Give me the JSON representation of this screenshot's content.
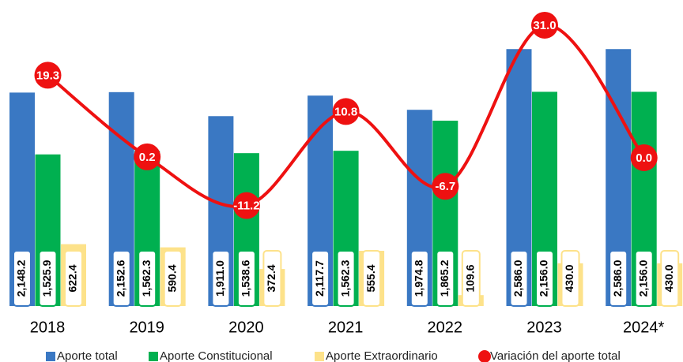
{
  "chart_data": {
    "type": "bar",
    "categories": [
      "2018",
      "2019",
      "2020",
      "2021",
      "2022",
      "2023",
      "2024*"
    ],
    "series": [
      {
        "name": "Aporte total",
        "color": "#3a78c3",
        "values": [
          2148.2,
          2152.6,
          1911.0,
          2117.7,
          1974.8,
          2586.0,
          2586.0
        ],
        "value_labels": [
          "2,148.2",
          "2,152.6",
          "1,911.0",
          "2,117.7",
          "1,974.8",
          "2,586.0",
          "2,586.0"
        ]
      },
      {
        "name": "Aporte Constitucional",
        "color": "#00b050",
        "values": [
          1525.9,
          1562.3,
          1538.6,
          1562.3,
          1865.2,
          2156.0,
          2156.0
        ],
        "value_labels": [
          "1,525.9",
          "1,562.3",
          "1,538.6",
          "1,562.3",
          "1,865.2",
          "2,156.0",
          "2,156.0"
        ]
      },
      {
        "name": "Aporte Extraordinario",
        "color": "#fde28a",
        "values": [
          622.4,
          590.4,
          372.4,
          555.4,
          109.6,
          430.0,
          430.0
        ],
        "value_labels": [
          "622.4",
          "590.4",
          "372.4",
          "555.4",
          "109.6",
          "430.0",
          "430.0"
        ]
      },
      {
        "name": "Variación del aporte total",
        "color": "#ee1111",
        "type": "line",
        "axis": "y2",
        "values": [
          19.3,
          0.2,
          -11.2,
          10.8,
          -6.7,
          31.0,
          0.0
        ],
        "value_labels": [
          "19.3",
          "0.2",
          "-11.2",
          "10.8",
          "-6.7",
          "31.0",
          "0.0"
        ]
      }
    ],
    "ylim": [
      0,
      3080
    ],
    "y2lim": [
      -34.7,
      36.9
    ],
    "grid": false,
    "legend": "bottom"
  }
}
